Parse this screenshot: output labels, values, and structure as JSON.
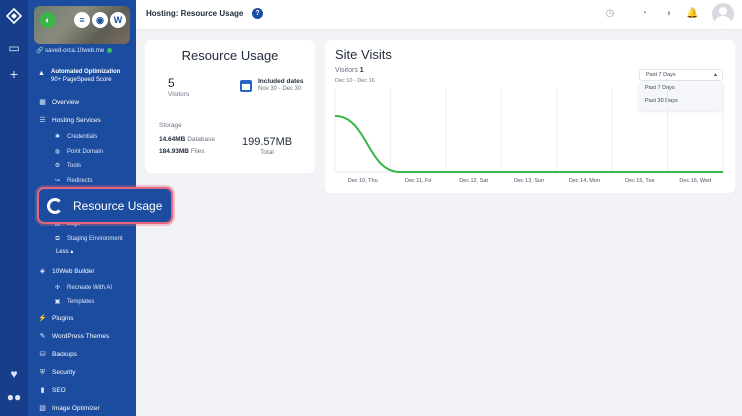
{
  "topbar": {
    "title": "Hosting: Resource Usage",
    "help": "?"
  },
  "site": {
    "domain": "saved-orca.10web.me"
  },
  "optimization": {
    "title": "Automated Optimization",
    "subtitle": "90+ PageSpeed Score"
  },
  "nav": {
    "overview": "Overview",
    "hosting_services": "Hosting Services",
    "credentials": "Credentials",
    "point_domain": "Point Domain",
    "tools": "Tools",
    "redirects": "Redirects",
    "logs": "Logs",
    "staging": "Staging Environment",
    "less": "Less ▴",
    "builder": "10Web Builder",
    "recreate": "Recreate With AI",
    "templates": "Templates",
    "plugins": "Plugins",
    "themes": "WordPress Themes",
    "backups": "Backups",
    "security": "Security",
    "seo": "SEO",
    "image_optimizer": "Image Optimizer"
  },
  "highlight": {
    "label": "Resource Usage"
  },
  "resource_usage": {
    "title": "Resource Usage",
    "visitors_count": "5",
    "visitors_label": "Visitors",
    "included_title": "Included dates",
    "included_range": "Nov 30 - Dec 30",
    "storage_label": "Storage",
    "db_value": "14.64MB",
    "db_label": "Database",
    "files_value": "184.93MB",
    "files_label": "Files",
    "total_value": "199.57MB",
    "total_label": "Total"
  },
  "site_visits": {
    "title": "Site Visits",
    "visitors_label": "Visitors",
    "visitors_count": "1",
    "range": "Dec 10 - Dec 16",
    "dropdown": {
      "selected": "Past 7 Days",
      "options": [
        "Past 7 Days",
        "Past 30 Days"
      ]
    }
  },
  "chart_data": {
    "type": "line",
    "categories": [
      "Dec 10, Thu",
      "Dec 11, Fri",
      "Dec 12, Sat",
      "Dec 13, Sun",
      "Dec 14, Mon",
      "Dec 15, Tue",
      "Dec 16, Wed"
    ],
    "values": [
      1,
      0,
      0,
      0,
      0,
      0,
      0
    ],
    "ylim": [
      0,
      1.5
    ],
    "grid": true,
    "color": "#3ab54a"
  },
  "colors": {
    "sidebar": "#1b4c9f",
    "rail": "#173e8a",
    "accent": "#2a64c5",
    "highlight_border": "#e2677f",
    "line": "#3ab54a"
  }
}
